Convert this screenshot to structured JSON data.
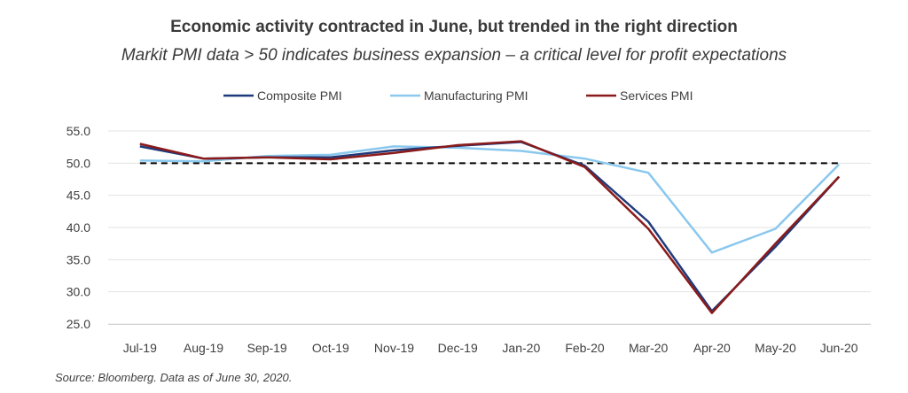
{
  "chart_data": {
    "type": "line",
    "title": "Economic activity contracted in June, but trended in the right direction",
    "subtitle": "Markit PMI data > 50 indicates business expansion – a critical level for profit expectations",
    "categories": [
      "Jul-19",
      "Aug-19",
      "Sep-19",
      "Oct-19",
      "Nov-19",
      "Dec-19",
      "Jan-20",
      "Feb-20",
      "Mar-20",
      "Apr-20",
      "May-20",
      "Jun-20"
    ],
    "series": [
      {
        "name": "Composite PMI",
        "color": "#1f3a7a",
        "values": [
          52.6,
          50.7,
          50.9,
          50.9,
          52.0,
          52.7,
          53.3,
          49.6,
          40.9,
          27.0,
          37.0,
          47.9
        ]
      },
      {
        "name": "Manufacturing PMI",
        "color": "#8ac8ee",
        "values": [
          50.4,
          50.3,
          51.1,
          51.3,
          52.6,
          52.4,
          51.9,
          50.7,
          48.5,
          36.1,
          39.8,
          49.8
        ]
      },
      {
        "name": "Services PMI",
        "color": "#8b1a1a",
        "values": [
          53.0,
          50.7,
          50.9,
          50.6,
          51.6,
          52.8,
          53.4,
          49.4,
          39.8,
          26.7,
          37.5,
          47.9
        ]
      }
    ],
    "reference_line": {
      "value": 50.0,
      "style": "dashed",
      "color": "#000000"
    },
    "ylim": [
      25.0,
      55.0
    ],
    "yticks": [
      "25.0",
      "30.0",
      "35.0",
      "40.0",
      "45.0",
      "50.0",
      "55.0"
    ],
    "grid": true,
    "legend_position": "top-center",
    "source": "Source: Bloomberg. Data as of June 30, 2020."
  }
}
